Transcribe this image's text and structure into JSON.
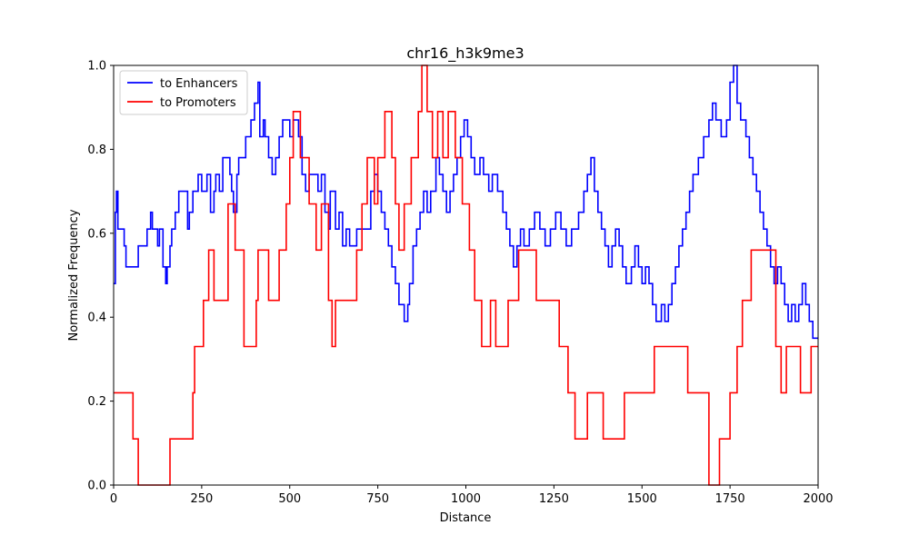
{
  "chart_data": {
    "type": "line",
    "title": "chr16_h3k9me3",
    "xlabel": "Distance",
    "ylabel": "Normalized Frequency",
    "xlim": [
      0,
      2000
    ],
    "ylim": [
      0,
      1.0
    ],
    "xticks": [
      0,
      250,
      500,
      750,
      1000,
      1250,
      1500,
      1750,
      2000
    ],
    "xtick_labels": [
      "0",
      "250",
      "500",
      "750",
      "1000",
      "1250",
      "1500",
      "1750",
      "2000"
    ],
    "yticks": [
      0,
      0.2,
      0.4,
      0.6,
      0.8,
      1.0
    ],
    "ytick_labels": [
      "0.0",
      "0.2",
      "0.4",
      "0.6",
      "0.8",
      "1.0"
    ],
    "grid": false,
    "legend_position": "upper-left",
    "step": true,
    "series": [
      {
        "name": "to Enhancers",
        "color": "#0000ff",
        "points": [
          [
            0,
            0.48
          ],
          [
            5,
            0.65
          ],
          [
            8,
            0.7
          ],
          [
            12,
            0.61
          ],
          [
            30,
            0.57
          ],
          [
            35,
            0.52
          ],
          [
            65,
            0.52
          ],
          [
            70,
            0.57
          ],
          [
            90,
            0.57
          ],
          [
            95,
            0.61
          ],
          [
            105,
            0.65
          ],
          [
            110,
            0.61
          ],
          [
            125,
            0.57
          ],
          [
            130,
            0.61
          ],
          [
            140,
            0.52
          ],
          [
            148,
            0.48
          ],
          [
            152,
            0.52
          ],
          [
            160,
            0.57
          ],
          [
            165,
            0.61
          ],
          [
            175,
            0.65
          ],
          [
            185,
            0.7
          ],
          [
            210,
            0.61
          ],
          [
            215,
            0.65
          ],
          [
            225,
            0.7
          ],
          [
            240,
            0.74
          ],
          [
            250,
            0.7
          ],
          [
            265,
            0.74
          ],
          [
            275,
            0.65
          ],
          [
            285,
            0.7
          ],
          [
            290,
            0.74
          ],
          [
            300,
            0.7
          ],
          [
            310,
            0.78
          ],
          [
            330,
            0.74
          ],
          [
            335,
            0.7
          ],
          [
            340,
            0.65
          ],
          [
            350,
            0.74
          ],
          [
            355,
            0.78
          ],
          [
            365,
            0.78
          ],
          [
            375,
            0.83
          ],
          [
            390,
            0.87
          ],
          [
            400,
            0.91
          ],
          [
            410,
            0.96
          ],
          [
            415,
            0.83
          ],
          [
            425,
            0.87
          ],
          [
            430,
            0.83
          ],
          [
            440,
            0.78
          ],
          [
            450,
            0.74
          ],
          [
            460,
            0.78
          ],
          [
            470,
            0.83
          ],
          [
            480,
            0.87
          ],
          [
            500,
            0.83
          ],
          [
            510,
            0.87
          ],
          [
            525,
            0.83
          ],
          [
            535,
            0.74
          ],
          [
            545,
            0.7
          ],
          [
            555,
            0.74
          ],
          [
            580,
            0.7
          ],
          [
            590,
            0.74
          ],
          [
            600,
            0.65
          ],
          [
            610,
            0.61
          ],
          [
            615,
            0.7
          ],
          [
            630,
            0.61
          ],
          [
            640,
            0.65
          ],
          [
            650,
            0.57
          ],
          [
            660,
            0.61
          ],
          [
            670,
            0.57
          ],
          [
            690,
            0.61
          ],
          [
            720,
            0.61
          ],
          [
            730,
            0.7
          ],
          [
            740,
            0.74
          ],
          [
            750,
            0.7
          ],
          [
            760,
            0.65
          ],
          [
            770,
            0.61
          ],
          [
            780,
            0.57
          ],
          [
            790,
            0.52
          ],
          [
            800,
            0.48
          ],
          [
            810,
            0.43
          ],
          [
            825,
            0.39
          ],
          [
            835,
            0.43
          ],
          [
            840,
            0.48
          ],
          [
            850,
            0.57
          ],
          [
            860,
            0.61
          ],
          [
            870,
            0.65
          ],
          [
            880,
            0.7
          ],
          [
            890,
            0.65
          ],
          [
            900,
            0.7
          ],
          [
            915,
            0.78
          ],
          [
            925,
            0.74
          ],
          [
            935,
            0.7
          ],
          [
            945,
            0.65
          ],
          [
            955,
            0.7
          ],
          [
            965,
            0.74
          ],
          [
            975,
            0.78
          ],
          [
            985,
            0.83
          ],
          [
            995,
            0.87
          ],
          [
            1005,
            0.83
          ],
          [
            1015,
            0.78
          ],
          [
            1025,
            0.74
          ],
          [
            1040,
            0.78
          ],
          [
            1050,
            0.74
          ],
          [
            1065,
            0.7
          ],
          [
            1075,
            0.74
          ],
          [
            1090,
            0.7
          ],
          [
            1105,
            0.65
          ],
          [
            1115,
            0.61
          ],
          [
            1125,
            0.57
          ],
          [
            1135,
            0.52
          ],
          [
            1145,
            0.57
          ],
          [
            1155,
            0.61
          ],
          [
            1165,
            0.57
          ],
          [
            1180,
            0.61
          ],
          [
            1195,
            0.65
          ],
          [
            1210,
            0.61
          ],
          [
            1225,
            0.57
          ],
          [
            1240,
            0.61
          ],
          [
            1255,
            0.65
          ],
          [
            1270,
            0.61
          ],
          [
            1285,
            0.57
          ],
          [
            1300,
            0.61
          ],
          [
            1320,
            0.65
          ],
          [
            1335,
            0.7
          ],
          [
            1345,
            0.74
          ],
          [
            1355,
            0.78
          ],
          [
            1365,
            0.7
          ],
          [
            1375,
            0.65
          ],
          [
            1385,
            0.61
          ],
          [
            1395,
            0.57
          ],
          [
            1405,
            0.52
          ],
          [
            1415,
            0.57
          ],
          [
            1425,
            0.61
          ],
          [
            1435,
            0.57
          ],
          [
            1445,
            0.52
          ],
          [
            1455,
            0.48
          ],
          [
            1470,
            0.52
          ],
          [
            1480,
            0.57
          ],
          [
            1490,
            0.52
          ],
          [
            1500,
            0.48
          ],
          [
            1510,
            0.52
          ],
          [
            1520,
            0.48
          ],
          [
            1530,
            0.43
          ],
          [
            1540,
            0.39
          ],
          [
            1555,
            0.43
          ],
          [
            1565,
            0.39
          ],
          [
            1575,
            0.43
          ],
          [
            1585,
            0.48
          ],
          [
            1595,
            0.52
          ],
          [
            1605,
            0.57
          ],
          [
            1615,
            0.61
          ],
          [
            1625,
            0.65
          ],
          [
            1635,
            0.7
          ],
          [
            1645,
            0.74
          ],
          [
            1660,
            0.78
          ],
          [
            1675,
            0.83
          ],
          [
            1690,
            0.87
          ],
          [
            1700,
            0.91
          ],
          [
            1710,
            0.87
          ],
          [
            1725,
            0.83
          ],
          [
            1740,
            0.87
          ],
          [
            1750,
            0.96
          ],
          [
            1760,
            1.0
          ],
          [
            1770,
            0.91
          ],
          [
            1780,
            0.87
          ],
          [
            1795,
            0.83
          ],
          [
            1805,
            0.78
          ],
          [
            1815,
            0.74
          ],
          [
            1825,
            0.7
          ],
          [
            1835,
            0.65
          ],
          [
            1845,
            0.61
          ],
          [
            1855,
            0.57
          ],
          [
            1865,
            0.52
          ],
          [
            1875,
            0.48
          ],
          [
            1885,
            0.52
          ],
          [
            1895,
            0.48
          ],
          [
            1905,
            0.43
          ],
          [
            1915,
            0.39
          ],
          [
            1925,
            0.43
          ],
          [
            1935,
            0.39
          ],
          [
            1945,
            0.43
          ],
          [
            1955,
            0.48
          ],
          [
            1965,
            0.43
          ],
          [
            1975,
            0.39
          ],
          [
            1985,
            0.35
          ],
          [
            2000,
            0.35
          ]
        ]
      },
      {
        "name": "to Promoters",
        "color": "#ff0000",
        "points": [
          [
            0,
            0.22
          ],
          [
            55,
            0.11
          ],
          [
            70,
            0.0
          ],
          [
            160,
            0.11
          ],
          [
            225,
            0.22
          ],
          [
            230,
            0.33
          ],
          [
            255,
            0.44
          ],
          [
            270,
            0.56
          ],
          [
            285,
            0.44
          ],
          [
            325,
            0.67
          ],
          [
            345,
            0.56
          ],
          [
            370,
            0.33
          ],
          [
            405,
            0.44
          ],
          [
            410,
            0.56
          ],
          [
            440,
            0.44
          ],
          [
            470,
            0.56
          ],
          [
            490,
            0.67
          ],
          [
            500,
            0.78
          ],
          [
            510,
            0.89
          ],
          [
            530,
            0.78
          ],
          [
            555,
            0.67
          ],
          [
            575,
            0.56
          ],
          [
            590,
            0.67
          ],
          [
            610,
            0.44
          ],
          [
            620,
            0.33
          ],
          [
            630,
            0.44
          ],
          [
            690,
            0.56
          ],
          [
            705,
            0.67
          ],
          [
            720,
            0.78
          ],
          [
            740,
            0.67
          ],
          [
            750,
            0.78
          ],
          [
            770,
            0.89
          ],
          [
            790,
            0.78
          ],
          [
            800,
            0.67
          ],
          [
            810,
            0.56
          ],
          [
            825,
            0.67
          ],
          [
            845,
            0.78
          ],
          [
            865,
            0.89
          ],
          [
            875,
            1.0
          ],
          [
            890,
            0.89
          ],
          [
            905,
            0.78
          ],
          [
            920,
            0.89
          ],
          [
            935,
            0.78
          ],
          [
            950,
            0.89
          ],
          [
            970,
            0.78
          ],
          [
            990,
            0.67
          ],
          [
            1010,
            0.56
          ],
          [
            1025,
            0.44
          ],
          [
            1045,
            0.33
          ],
          [
            1070,
            0.44
          ],
          [
            1085,
            0.33
          ],
          [
            1120,
            0.44
          ],
          [
            1150,
            0.56
          ],
          [
            1200,
            0.44
          ],
          [
            1265,
            0.33
          ],
          [
            1290,
            0.22
          ],
          [
            1310,
            0.11
          ],
          [
            1345,
            0.22
          ],
          [
            1390,
            0.11
          ],
          [
            1450,
            0.22
          ],
          [
            1535,
            0.33
          ],
          [
            1580,
            0.33
          ],
          [
            1630,
            0.22
          ],
          [
            1690,
            0.0
          ],
          [
            1720,
            0.11
          ],
          [
            1750,
            0.22
          ],
          [
            1770,
            0.33
          ],
          [
            1785,
            0.44
          ],
          [
            1810,
            0.56
          ],
          [
            1880,
            0.33
          ],
          [
            1895,
            0.22
          ],
          [
            1910,
            0.33
          ],
          [
            1950,
            0.22
          ],
          [
            1980,
            0.33
          ],
          [
            2000,
            0.33
          ]
        ]
      }
    ]
  }
}
